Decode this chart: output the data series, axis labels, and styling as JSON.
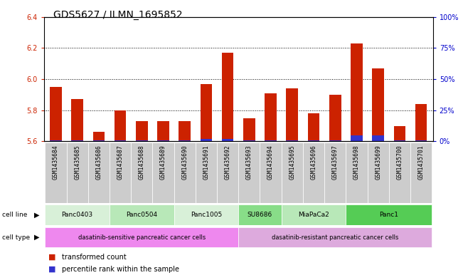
{
  "title": "GDS5627 / ILMN_1695852",
  "samples": [
    "GSM1435684",
    "GSM1435685",
    "GSM1435686",
    "GSM1435687",
    "GSM1435688",
    "GSM1435689",
    "GSM1435690",
    "GSM1435691",
    "GSM1435692",
    "GSM1435693",
    "GSM1435694",
    "GSM1435695",
    "GSM1435696",
    "GSM1435697",
    "GSM1435698",
    "GSM1435699",
    "GSM1435700",
    "GSM1435701"
  ],
  "transformed_counts": [
    5.95,
    5.87,
    5.66,
    5.8,
    5.73,
    5.73,
    5.73,
    5.97,
    6.17,
    5.75,
    5.91,
    5.94,
    5.78,
    5.9,
    6.23,
    6.07,
    5.7,
    5.84
  ],
  "percentile_ranks": [
    1,
    1,
    1,
    1,
    1,
    1,
    1,
    2,
    2,
    1,
    1,
    1,
    1,
    1,
    5,
    5,
    1,
    1
  ],
  "ylim_left": [
    5.6,
    6.4
  ],
  "ylim_right": [
    0,
    100
  ],
  "yticks_left": [
    5.6,
    5.8,
    6.0,
    6.2,
    6.4
  ],
  "yticks_right": [
    0,
    25,
    50,
    75,
    100
  ],
  "ytick_labels_right": [
    "0%",
    "25%",
    "50%",
    "75%",
    "100%"
  ],
  "bar_color_red": "#cc2200",
  "bar_color_blue": "#3333cc",
  "grid_color": "#000000",
  "cell_lines": [
    {
      "label": "Panc0403",
      "start": 0,
      "end": 3,
      "color": "#d8f0d8"
    },
    {
      "label": "Panc0504",
      "start": 3,
      "end": 6,
      "color": "#b8e8b8"
    },
    {
      "label": "Panc1005",
      "start": 6,
      "end": 9,
      "color": "#d8f0d8"
    },
    {
      "label": "SU8686",
      "start": 9,
      "end": 11,
      "color": "#88dd88"
    },
    {
      "label": "MiaPaCa2",
      "start": 11,
      "end": 14,
      "color": "#b8e8b8"
    },
    {
      "label": "Panc1",
      "start": 14,
      "end": 18,
      "color": "#55cc55"
    }
  ],
  "cell_types": [
    {
      "label": "dasatinib-sensitive pancreatic cancer cells",
      "start": 0,
      "end": 9,
      "color": "#ee88ee"
    },
    {
      "label": "dasatinib-resistant pancreatic cancer cells",
      "start": 9,
      "end": 18,
      "color": "#ddaadd"
    }
  ],
  "bar_width": 0.55,
  "tick_fontsize": 7,
  "label_fontsize": 7,
  "title_fontsize": 10,
  "bg_color": "#ffffff",
  "plot_bg_color": "#ffffff",
  "left_tick_color": "#cc2200",
  "right_tick_color": "#0000cc",
  "sample_label_bg": "#cccccc",
  "legend_red_label": "transformed count",
  "legend_blue_label": "percentile rank within the sample"
}
